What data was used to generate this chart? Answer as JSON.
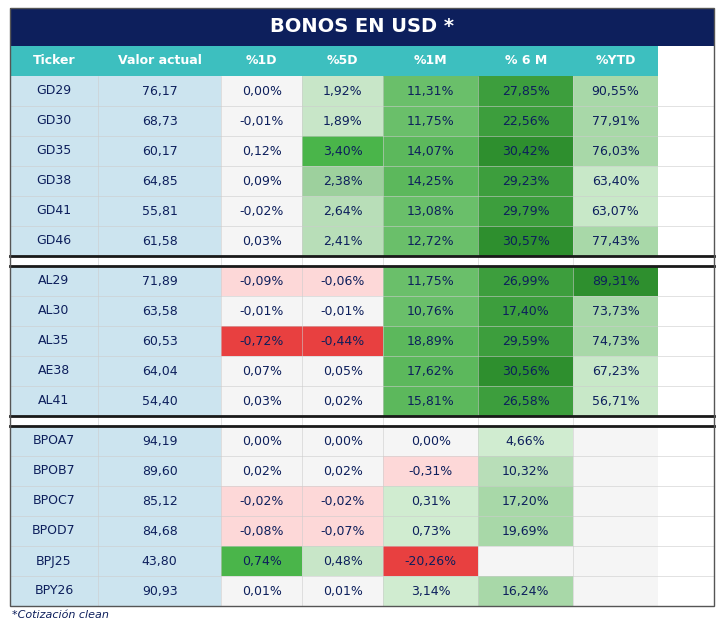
{
  "title": "BONOS EN USD *",
  "title_bg": "#0d1f5c",
  "title_color": "#ffffff",
  "header_bg": "#3dbfbf",
  "header_color": "#ffffff",
  "col_display": [
    "Ticker",
    "Valor actual",
    "%1D",
    "%5D",
    "%1M",
    "% 6 M",
    "%YTD"
  ],
  "footnote": "*Cotización clean",
  "text_color": "#0d1f5c",
  "groups": [
    {
      "rows": [
        [
          "GD29",
          "76,17",
          "0,00%",
          "1,92%",
          "11,31%",
          "27,85%",
          "90,55%"
        ],
        [
          "GD30",
          "68,73",
          "-0,01%",
          "1,89%",
          "11,75%",
          "22,56%",
          "77,91%"
        ],
        [
          "GD35",
          "60,17",
          "0,12%",
          "3,40%",
          "14,07%",
          "30,42%",
          "76,03%"
        ],
        [
          "GD38",
          "64,85",
          "0,09%",
          "2,38%",
          "14,25%",
          "29,23%",
          "63,40%"
        ],
        [
          "GD41",
          "55,81",
          "-0,02%",
          "2,64%",
          "13,08%",
          "29,79%",
          "63,07%"
        ],
        [
          "GD46",
          "61,58",
          "0,03%",
          "2,41%",
          "12,72%",
          "30,57%",
          "77,43%"
        ]
      ],
      "cell_colors": [
        [
          "#cce4ef",
          "#cce4ef",
          "#f5f5f5",
          "#c8e6c8",
          "#6abf6a",
          "#3d9e3d",
          "#a8d8a8"
        ],
        [
          "#cce4ef",
          "#cce4ef",
          "#f5f5f5",
          "#c8e6c8",
          "#6abf6a",
          "#3d9e3d",
          "#a8d8a8"
        ],
        [
          "#cce4ef",
          "#cce4ef",
          "#f5f5f5",
          "#4ab54a",
          "#5cb85c",
          "#2e8f2e",
          "#a8d8a8"
        ],
        [
          "#cce4ef",
          "#cce4ef",
          "#f5f5f5",
          "#9dd09d",
          "#5cb85c",
          "#3d9e3d",
          "#c8e8c8"
        ],
        [
          "#cce4ef",
          "#cce4ef",
          "#f5f5f5",
          "#b8deb8",
          "#6abf6a",
          "#3d9e3d",
          "#c8e8c8"
        ],
        [
          "#cce4ef",
          "#cce4ef",
          "#f5f5f5",
          "#b8deb8",
          "#6abf6a",
          "#2e8f2e",
          "#a8d8a8"
        ]
      ]
    },
    {
      "rows": [
        [
          "AL29",
          "71,89",
          "-0,09%",
          "-0,06%",
          "11,75%",
          "26,99%",
          "89,31%"
        ],
        [
          "AL30",
          "63,58",
          "-0,01%",
          "-0,01%",
          "10,76%",
          "17,40%",
          "73,73%"
        ],
        [
          "AL35",
          "60,53",
          "-0,72%",
          "-0,44%",
          "18,89%",
          "29,59%",
          "74,73%"
        ],
        [
          "AE38",
          "64,04",
          "0,07%",
          "0,05%",
          "17,62%",
          "30,56%",
          "67,23%"
        ],
        [
          "AL41",
          "54,40",
          "0,03%",
          "0,02%",
          "15,81%",
          "26,58%",
          "56,71%"
        ]
      ],
      "cell_colors": [
        [
          "#cce4ef",
          "#cce4ef",
          "#fdd8d8",
          "#fdd8d8",
          "#6abf6a",
          "#3d9e3d",
          "#2e8f2e"
        ],
        [
          "#cce4ef",
          "#cce4ef",
          "#f5f5f5",
          "#f5f5f5",
          "#6abf6a",
          "#3d9e3d",
          "#a8d8a8"
        ],
        [
          "#cce4ef",
          "#cce4ef",
          "#e84040",
          "#e84040",
          "#5cb85c",
          "#3d9e3d",
          "#a8d8a8"
        ],
        [
          "#cce4ef",
          "#cce4ef",
          "#f5f5f5",
          "#f5f5f5",
          "#5cb85c",
          "#2e8f2e",
          "#c8e8c8"
        ],
        [
          "#cce4ef",
          "#cce4ef",
          "#f5f5f5",
          "#f5f5f5",
          "#5cb85c",
          "#3d9e3d",
          "#c8e8c8"
        ]
      ]
    },
    {
      "rows": [
        [
          "BPOA7",
          "94,19",
          "0,00%",
          "0,00%",
          "0,00%",
          "4,66%",
          ""
        ],
        [
          "BPOB7",
          "89,60",
          "0,02%",
          "0,02%",
          "-0,31%",
          "10,32%",
          ""
        ],
        [
          "BPOC7",
          "85,12",
          "-0,02%",
          "-0,02%",
          "0,31%",
          "17,20%",
          ""
        ],
        [
          "BPOD7",
          "84,68",
          "-0,08%",
          "-0,07%",
          "0,73%",
          "19,69%",
          ""
        ],
        [
          "BPJ25",
          "43,80",
          "0,74%",
          "0,48%",
          "-20,26%",
          "",
          ""
        ],
        [
          "BPY26",
          "90,93",
          "0,01%",
          "0,01%",
          "3,14%",
          "16,24%",
          ""
        ]
      ],
      "cell_colors": [
        [
          "#cce4ef",
          "#cce4ef",
          "#f5f5f5",
          "#f5f5f5",
          "#f5f5f5",
          "#d0ecd0",
          "#f5f5f5"
        ],
        [
          "#cce4ef",
          "#cce4ef",
          "#f5f5f5",
          "#f5f5f5",
          "#fdd8d8",
          "#b8deb8",
          "#f5f5f5"
        ],
        [
          "#cce4ef",
          "#cce4ef",
          "#fdd8d8",
          "#fdd8d8",
          "#d0ecd0",
          "#a8d8a8",
          "#f5f5f5"
        ],
        [
          "#cce4ef",
          "#cce4ef",
          "#fdd8d8",
          "#fdd8d8",
          "#d0ecd0",
          "#a8d8a8",
          "#f5f5f5"
        ],
        [
          "#cce4ef",
          "#cce4ef",
          "#4ab54a",
          "#c8e6c8",
          "#e84040",
          "#f5f5f5",
          "#f5f5f5"
        ],
        [
          "#cce4ef",
          "#cce4ef",
          "#f5f5f5",
          "#f5f5f5",
          "#d0ecd0",
          "#a8d8a8",
          "#f5f5f5"
        ]
      ]
    }
  ]
}
